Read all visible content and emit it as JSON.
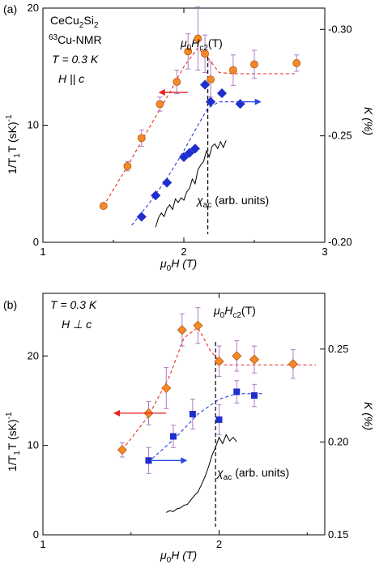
{
  "colors": {
    "orange": "#f5882a",
    "orange_edge": "#b85a10",
    "blue": "#1f2ecc",
    "red_arrow": "#e8201e",
    "blue_arrow": "#2846e6",
    "error_bar": "#b07ac8",
    "fit_red": "#e8403a",
    "fit_blue": "#3a4ae0",
    "chi": "#000000"
  },
  "chart_data": [
    {
      "type": "scatter",
      "panel_label": "(a)",
      "xlabel_prefix": "μ",
      "xlabel_sub": "0",
      "xlabel_suffix": "H (T)",
      "ylabel_left": "1/T",
      "ylabel_left_sub": "1",
      "ylabel_left_suffix": "T (sK)",
      "ylabel_left_sup": "-1",
      "ylabel_right": "K (%)",
      "xlim": [
        1,
        3
      ],
      "ylim_left": [
        0,
        20
      ],
      "ylim_right": [
        -0.2,
        -0.31
      ],
      "xticks": [
        1,
        2,
        3
      ],
      "xtick_labels": [
        "1",
        "2",
        "3"
      ],
      "yticks_left": [
        0,
        10,
        20
      ],
      "ytick_left_labels": [
        "0",
        "10",
        "20"
      ],
      "yticks_right": [
        -0.2,
        -0.25,
        -0.3
      ],
      "ytick_right_labels": [
        "-0.20",
        "-0.25",
        "-0.30"
      ],
      "annotations": {
        "compound_main": "CeCu",
        "compound_sub": "2",
        "compound_main2": "Si",
        "compound_sub2": "2",
        "nmr_sup": "63",
        "nmr_main": "Cu-NMR",
        "temp": "T = 0.3 K",
        "field_dir": "H || c",
        "hc2_prefix": "μ",
        "hc2_sub0": "0",
        "hc2_mid": "H",
        "hc2_sub": "c2",
        "hc2_suffix": "(T)",
        "chi_main": "χ",
        "chi_sub": "ac",
        "chi_suffix": "(arb. units)"
      },
      "hc2_line_x": 2.17,
      "series": [
        {
          "marker": "circle",
          "axis": "left",
          "points": [
            {
              "x": 1.43,
              "y": 3.1,
              "err": 0
            },
            {
              "x": 1.6,
              "y": 6.5,
              "err": 0.4
            },
            {
              "x": 1.7,
              "y": 8.9,
              "err": 0.7
            },
            {
              "x": 1.83,
              "y": 11.8,
              "err": 0.6
            },
            {
              "x": 1.95,
              "y": 13.7,
              "err": 1.0
            },
            {
              "x": 2.03,
              "y": 16.3,
              "err": 1.5
            },
            {
              "x": 2.1,
              "y": 17.4,
              "err": 2.7
            },
            {
              "x": 2.15,
              "y": 16.1,
              "err": 1.6
            },
            {
              "x": 2.19,
              "y": 13.9,
              "err": 1.5
            },
            {
              "x": 2.35,
              "y": 14.7,
              "err": 1.3
            },
            {
              "x": 2.5,
              "y": 15.2,
              "err": 1.2
            },
            {
              "x": 2.8,
              "y": 15.3,
              "err": 0.7
            }
          ]
        },
        {
          "marker": "diamond",
          "axis": "right",
          "points": [
            {
              "x": 1.7,
              "y": -0.212
            },
            {
              "x": 1.8,
              "y": -0.222
            },
            {
              "x": 1.88,
              "y": -0.228
            },
            {
              "x": 2.0,
              "y": -0.24
            },
            {
              "x": 2.04,
              "y": -0.242
            },
            {
              "x": 2.08,
              "y": -0.244
            },
            {
              "x": 2.15,
              "y": -0.274
            },
            {
              "x": 2.19,
              "y": -0.266
            },
            {
              "x": 2.27,
              "y": -0.27
            },
            {
              "x": 2.4,
              "y": -0.265
            }
          ]
        }
      ],
      "fit_red": [
        [
          1.43,
          3.1
        ],
        [
          1.6,
          6.5
        ],
        [
          1.75,
          9.7
        ],
        [
          1.9,
          12.8
        ],
        [
          2.0,
          15.0
        ],
        [
          2.1,
          16.6
        ],
        [
          2.18,
          15.6
        ],
        [
          2.25,
          14.5
        ],
        [
          2.35,
          14.4
        ],
        [
          2.8,
          14.4
        ]
      ],
      "fit_blue": [
        [
          1.63,
          -0.208
        ],
        [
          1.75,
          -0.218
        ],
        [
          1.88,
          -0.23
        ],
        [
          2.0,
          -0.243
        ],
        [
          2.1,
          -0.255
        ],
        [
          2.17,
          -0.263
        ],
        [
          2.25,
          -0.266
        ],
        [
          2.45,
          -0.266
        ]
      ],
      "chi_ac": [
        [
          1.8,
          1.3
        ],
        [
          1.82,
          2.1
        ],
        [
          1.84,
          2.5
        ],
        [
          1.86,
          2.2
        ],
        [
          1.88,
          2.9
        ],
        [
          1.9,
          3.2
        ],
        [
          1.92,
          2.8
        ],
        [
          1.94,
          3.7
        ],
        [
          1.96,
          3.4
        ],
        [
          1.98,
          3.8
        ],
        [
          2.0,
          3.6
        ],
        [
          2.02,
          4.3
        ],
        [
          2.04,
          4.6
        ],
        [
          2.06,
          5.4
        ],
        [
          2.08,
          5.0
        ],
        [
          2.1,
          6.2
        ],
        [
          2.12,
          6.6
        ],
        [
          2.14,
          6.9
        ],
        [
          2.16,
          7.8
        ],
        [
          2.18,
          7.3
        ],
        [
          2.2,
          8.2
        ],
        [
          2.22,
          8.4
        ],
        [
          2.24,
          8.0
        ],
        [
          2.26,
          8.6
        ],
        [
          2.28,
          8.1
        ],
        [
          2.3,
          8.7
        ]
      ],
      "arrow_red": {
        "x_from": 2.03,
        "x_to": 1.82,
        "y": 12.8
      },
      "arrow_blue": {
        "x_from": 2.4,
        "x_to": 2.55,
        "y": -0.266
      }
    },
    {
      "type": "scatter",
      "panel_label": "(b)",
      "xlabel_prefix": "μ",
      "xlabel_sub": "0",
      "xlabel_suffix": "H (T)",
      "ylabel_left": "1/T",
      "ylabel_left_sub": "1",
      "ylabel_left_suffix": "T (sK)",
      "ylabel_left_sup": "-1",
      "ylabel_right": "K (%)",
      "xlim": [
        1,
        2.6
      ],
      "ylim_left": [
        0,
        27
      ],
      "ylim_right": [
        0.15,
        0.28
      ],
      "xticks": [
        1,
        2
      ],
      "xtick_labels": [
        "1",
        "2"
      ],
      "yticks_left": [
        0,
        10,
        20
      ],
      "ytick_left_labels": [
        "0",
        "10",
        "20"
      ],
      "yticks_right": [
        0.15,
        0.2,
        0.25
      ],
      "ytick_right_labels": [
        "0.15",
        "0.20",
        "0.25"
      ],
      "annotations": {
        "temp": "T = 0.3 K",
        "field_dir": "H ⊥ c",
        "hc2_prefix": "μ",
        "hc2_sub0": "0",
        "hc2_mid": "H",
        "hc2_sub": "c2",
        "hc2_suffix": "(T)",
        "chi_main": "χ",
        "chi_sub": "ac",
        "chi_suffix": "(arb. units)"
      },
      "hc2_line_x": 1.98,
      "series": [
        {
          "marker": "diamond",
          "axis": "left",
          "points": [
            {
              "x": 1.45,
              "y": 9.5,
              "err": 0.8
            },
            {
              "x": 1.6,
              "y": 13.6,
              "err": 1.3
            },
            {
              "x": 1.7,
              "y": 16.4,
              "err": 2.3
            },
            {
              "x": 1.79,
              "y": 22.9,
              "err": 1.8
            },
            {
              "x": 1.88,
              "y": 23.4,
              "err": 2.0
            },
            {
              "x": 2.0,
              "y": 19.4,
              "err": 1.7
            },
            {
              "x": 2.1,
              "y": 20.0,
              "err": 1.7
            },
            {
              "x": 2.2,
              "y": 19.6,
              "err": 1.5
            },
            {
              "x": 2.42,
              "y": 19.1,
              "err": 1.6
            }
          ]
        },
        {
          "marker": "square",
          "axis": "right",
          "points": [
            {
              "x": 1.6,
              "y": 0.19,
              "err": 0.007
            },
            {
              "x": 1.74,
              "y": 0.203,
              "err": 0.006
            },
            {
              "x": 1.85,
              "y": 0.215,
              "err": 0.008
            },
            {
              "x": 2.0,
              "y": 0.212,
              "err": 0.008
            },
            {
              "x": 2.1,
              "y": 0.227,
              "err": 0.006
            },
            {
              "x": 2.2,
              "y": 0.225,
              "err": 0.006
            }
          ]
        }
      ],
      "fit_red": [
        [
          1.45,
          9.5
        ],
        [
          1.6,
          13.3
        ],
        [
          1.72,
          17.8
        ],
        [
          1.8,
          22.0
        ],
        [
          1.88,
          23.2
        ],
        [
          1.95,
          20.6
        ],
        [
          2.02,
          19.0
        ],
        [
          2.2,
          19.0
        ],
        [
          2.55,
          19.0
        ]
      ],
      "fit_blue": [
        [
          1.62,
          0.191
        ],
        [
          1.75,
          0.202
        ],
        [
          1.88,
          0.215
        ],
        [
          2.0,
          0.223
        ],
        [
          2.1,
          0.226
        ],
        [
          2.25,
          0.226
        ]
      ],
      "chi_ac": [
        [
          1.7,
          2.5
        ],
        [
          1.72,
          2.7
        ],
        [
          1.74,
          2.6
        ],
        [
          1.76,
          2.9
        ],
        [
          1.78,
          3.0
        ],
        [
          1.8,
          3.3
        ],
        [
          1.82,
          3.4
        ],
        [
          1.84,
          3.9
        ],
        [
          1.86,
          4.4
        ],
        [
          1.88,
          4.8
        ],
        [
          1.9,
          5.6
        ],
        [
          1.92,
          6.5
        ],
        [
          1.94,
          7.6
        ],
        [
          1.96,
          8.9
        ],
        [
          1.98,
          9.8
        ],
        [
          2.0,
          10.9
        ],
        [
          2.02,
          10.2
        ],
        [
          2.04,
          11.2
        ],
        [
          2.06,
          10.5
        ],
        [
          2.08,
          10.9
        ],
        [
          2.1,
          10.4
        ]
      ],
      "arrow_red": {
        "x_from": 1.7,
        "x_to": 1.4,
        "y": 13.6
      },
      "arrow_blue": {
        "x_from": 1.62,
        "x_to": 1.82,
        "y": 0.19
      }
    }
  ]
}
